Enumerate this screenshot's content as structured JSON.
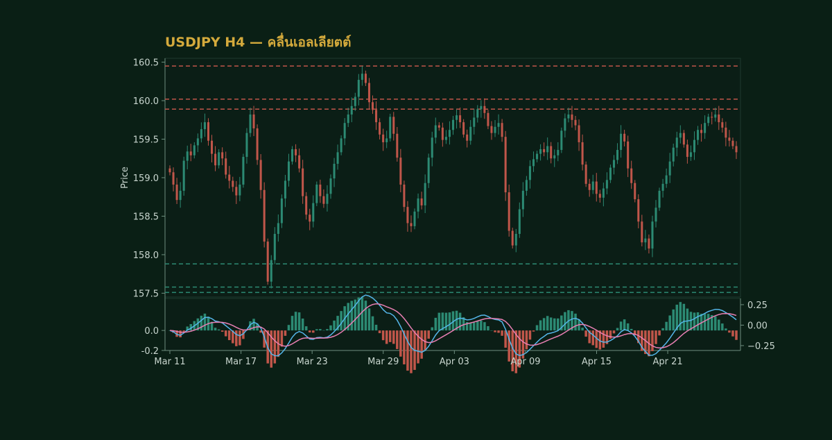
{
  "chart_data": {
    "type": "candlestick",
    "title": "USDJPY H4 — คลื่นเอลเลียตต์",
    "ylabel": "Price",
    "x_ticks": [
      "Mar 11",
      "Mar 17",
      "Mar 23",
      "Mar 29",
      "Apr 03",
      "Apr 09",
      "Apr 15",
      "Apr 21"
    ],
    "x_tick_index": [
      0,
      36,
      72,
      108,
      144,
      180,
      216,
      252
    ],
    "price_yticks": [
      157.5,
      158.0,
      158.5,
      159.0,
      159.5,
      160.0,
      160.5
    ],
    "price_ylim": [
      157.45,
      160.55
    ],
    "resistance_levels": [
      160.45,
      160.02,
      159.89
    ],
    "support_levels": [
      157.88,
      157.58,
      157.51
    ],
    "candles_close": [
      159.07,
      158.91,
      158.71,
      158.83,
      159.22,
      159.34,
      159.29,
      159.42,
      159.51,
      159.63,
      159.72,
      159.48,
      159.31,
      159.16,
      159.33,
      159.25,
      159.04,
      158.96,
      158.88,
      158.77,
      158.91,
      159.27,
      159.58,
      159.82,
      159.64,
      159.23,
      158.84,
      158.17,
      157.65,
      157.93,
      158.27,
      158.41,
      158.73,
      158.96,
      159.21,
      159.37,
      159.29,
      159.12,
      158.76,
      158.52,
      158.43,
      158.67,
      158.91,
      158.76,
      158.66,
      158.79,
      158.99,
      159.18,
      159.33,
      159.51,
      159.71,
      159.82,
      159.93,
      160.05,
      160.27,
      160.35,
      160.23,
      159.98,
      159.88,
      159.72,
      159.56,
      159.46,
      159.51,
      159.79,
      159.57,
      159.26,
      158.91,
      158.62,
      158.41,
      158.37,
      158.56,
      158.73,
      158.64,
      158.93,
      159.26,
      159.52,
      159.68,
      159.65,
      159.49,
      159.53,
      159.62,
      159.75,
      159.81,
      159.72,
      159.56,
      159.48,
      159.66,
      159.78,
      159.89,
      159.93,
      159.84,
      159.67,
      159.58,
      159.66,
      159.71,
      159.53,
      158.81,
      158.31,
      158.12,
      158.27,
      158.59,
      158.83,
      158.97,
      159.15,
      159.24,
      159.31,
      159.37,
      159.33,
      159.41,
      159.25,
      159.29,
      159.36,
      159.61,
      159.77,
      159.82,
      159.75,
      159.68,
      159.46,
      159.17,
      158.92,
      158.84,
      158.95,
      158.79,
      158.74,
      158.86,
      158.97,
      159.13,
      159.23,
      159.36,
      159.57,
      159.47,
      159.12,
      158.93,
      158.72,
      158.43,
      158.16,
      158.21,
      158.08,
      158.43,
      158.61,
      158.83,
      158.92,
      159.03,
      159.21,
      159.39,
      159.52,
      159.58,
      159.43,
      159.27,
      159.33,
      159.49,
      159.62,
      159.58,
      159.71,
      159.79,
      159.78,
      159.82,
      159.72,
      159.65,
      159.52,
      159.48,
      159.41,
      159.33
    ]
  }
}
